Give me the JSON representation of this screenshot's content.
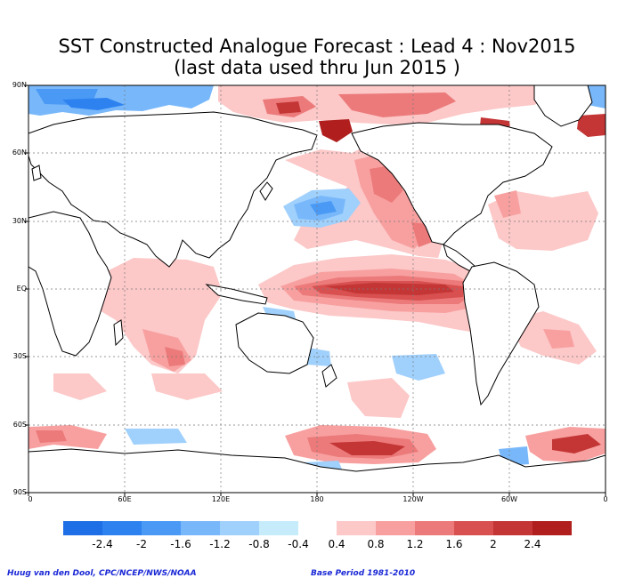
{
  "title": {
    "line1": "SST Constructed Analogue Forecast : Lead 4 : Nov2015",
    "line2": "(last data used thru Jun 2015 )"
  },
  "axes": {
    "lat_ticks": [
      "90N",
      "60N",
      "30N",
      "EQ",
      "30S",
      "60S",
      "90S"
    ],
    "lon_ticks": [
      "0",
      "60E",
      "120E",
      "180",
      "120W",
      "60W",
      "0"
    ]
  },
  "colorbar": {
    "labels": [
      "-2.4",
      "-2",
      "-1.6",
      "-1.2",
      "-0.8",
      "-0.4",
      "0.4",
      "0.8",
      "1.2",
      "1.6",
      "2",
      "2.4"
    ],
    "colors": {
      "neg": [
        "#1e6ee6",
        "#2e82f0",
        "#4a9af5",
        "#78b8fa",
        "#a0d0fc",
        "#c6ecfc"
      ],
      "pos": [
        "#fcc8c8",
        "#f8a0a0",
        "#ec7a7a",
        "#d85050",
        "#c43636",
        "#b01e1e"
      ]
    }
  },
  "footer": {
    "credit": "Huug van den Dool, CPC/NCEP/NWS/NOAA",
    "base_period": "Base Period 1981-2010"
  }
}
